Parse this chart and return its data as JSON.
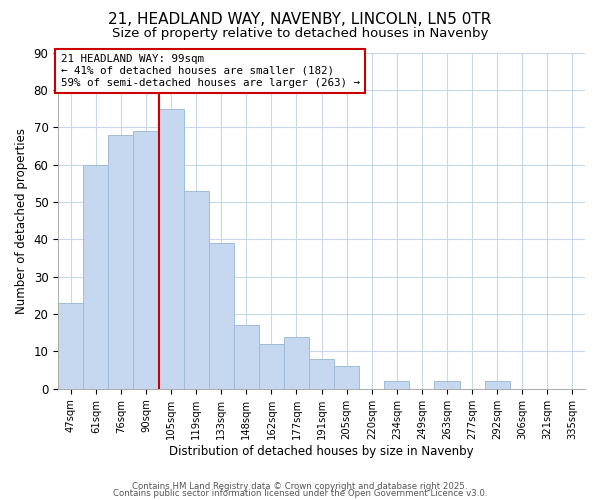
{
  "title": "21, HEADLAND WAY, NAVENBY, LINCOLN, LN5 0TR",
  "subtitle": "Size of property relative to detached houses in Navenby",
  "xlabel": "Distribution of detached houses by size in Navenby",
  "ylabel": "Number of detached properties",
  "categories": [
    "47sqm",
    "61sqm",
    "76sqm",
    "90sqm",
    "105sqm",
    "119sqm",
    "133sqm",
    "148sqm",
    "162sqm",
    "177sqm",
    "191sqm",
    "205sqm",
    "220sqm",
    "234sqm",
    "249sqm",
    "263sqm",
    "277sqm",
    "292sqm",
    "306sqm",
    "321sqm",
    "335sqm"
  ],
  "values": [
    23,
    60,
    68,
    69,
    75,
    53,
    39,
    17,
    12,
    14,
    8,
    6,
    0,
    2,
    0,
    2,
    0,
    2,
    0,
    0,
    0
  ],
  "bar_color": "#c5d8f0",
  "bar_edge_color": "#a0bcd8",
  "vline_color": "#cc0000",
  "annotation_line1": "21 HEADLAND WAY: 99sqm",
  "annotation_line2": "← 41% of detached houses are smaller (182)",
  "annotation_line3": "59% of semi-detached houses are larger (263) →",
  "annotation_box_edge": "#cc0000",
  "ylim": [
    0,
    90
  ],
  "yticks": [
    0,
    10,
    20,
    30,
    40,
    50,
    60,
    70,
    80,
    90
  ],
  "footer1": "Contains HM Land Registry data © Crown copyright and database right 2025.",
  "footer2": "Contains public sector information licensed under the Open Government Licence v3.0.",
  "background_color": "#ffffff",
  "grid_color": "#c8d8ec",
  "title_fontsize": 11,
  "subtitle_fontsize": 9.5,
  "vline_bar_index": 4
}
